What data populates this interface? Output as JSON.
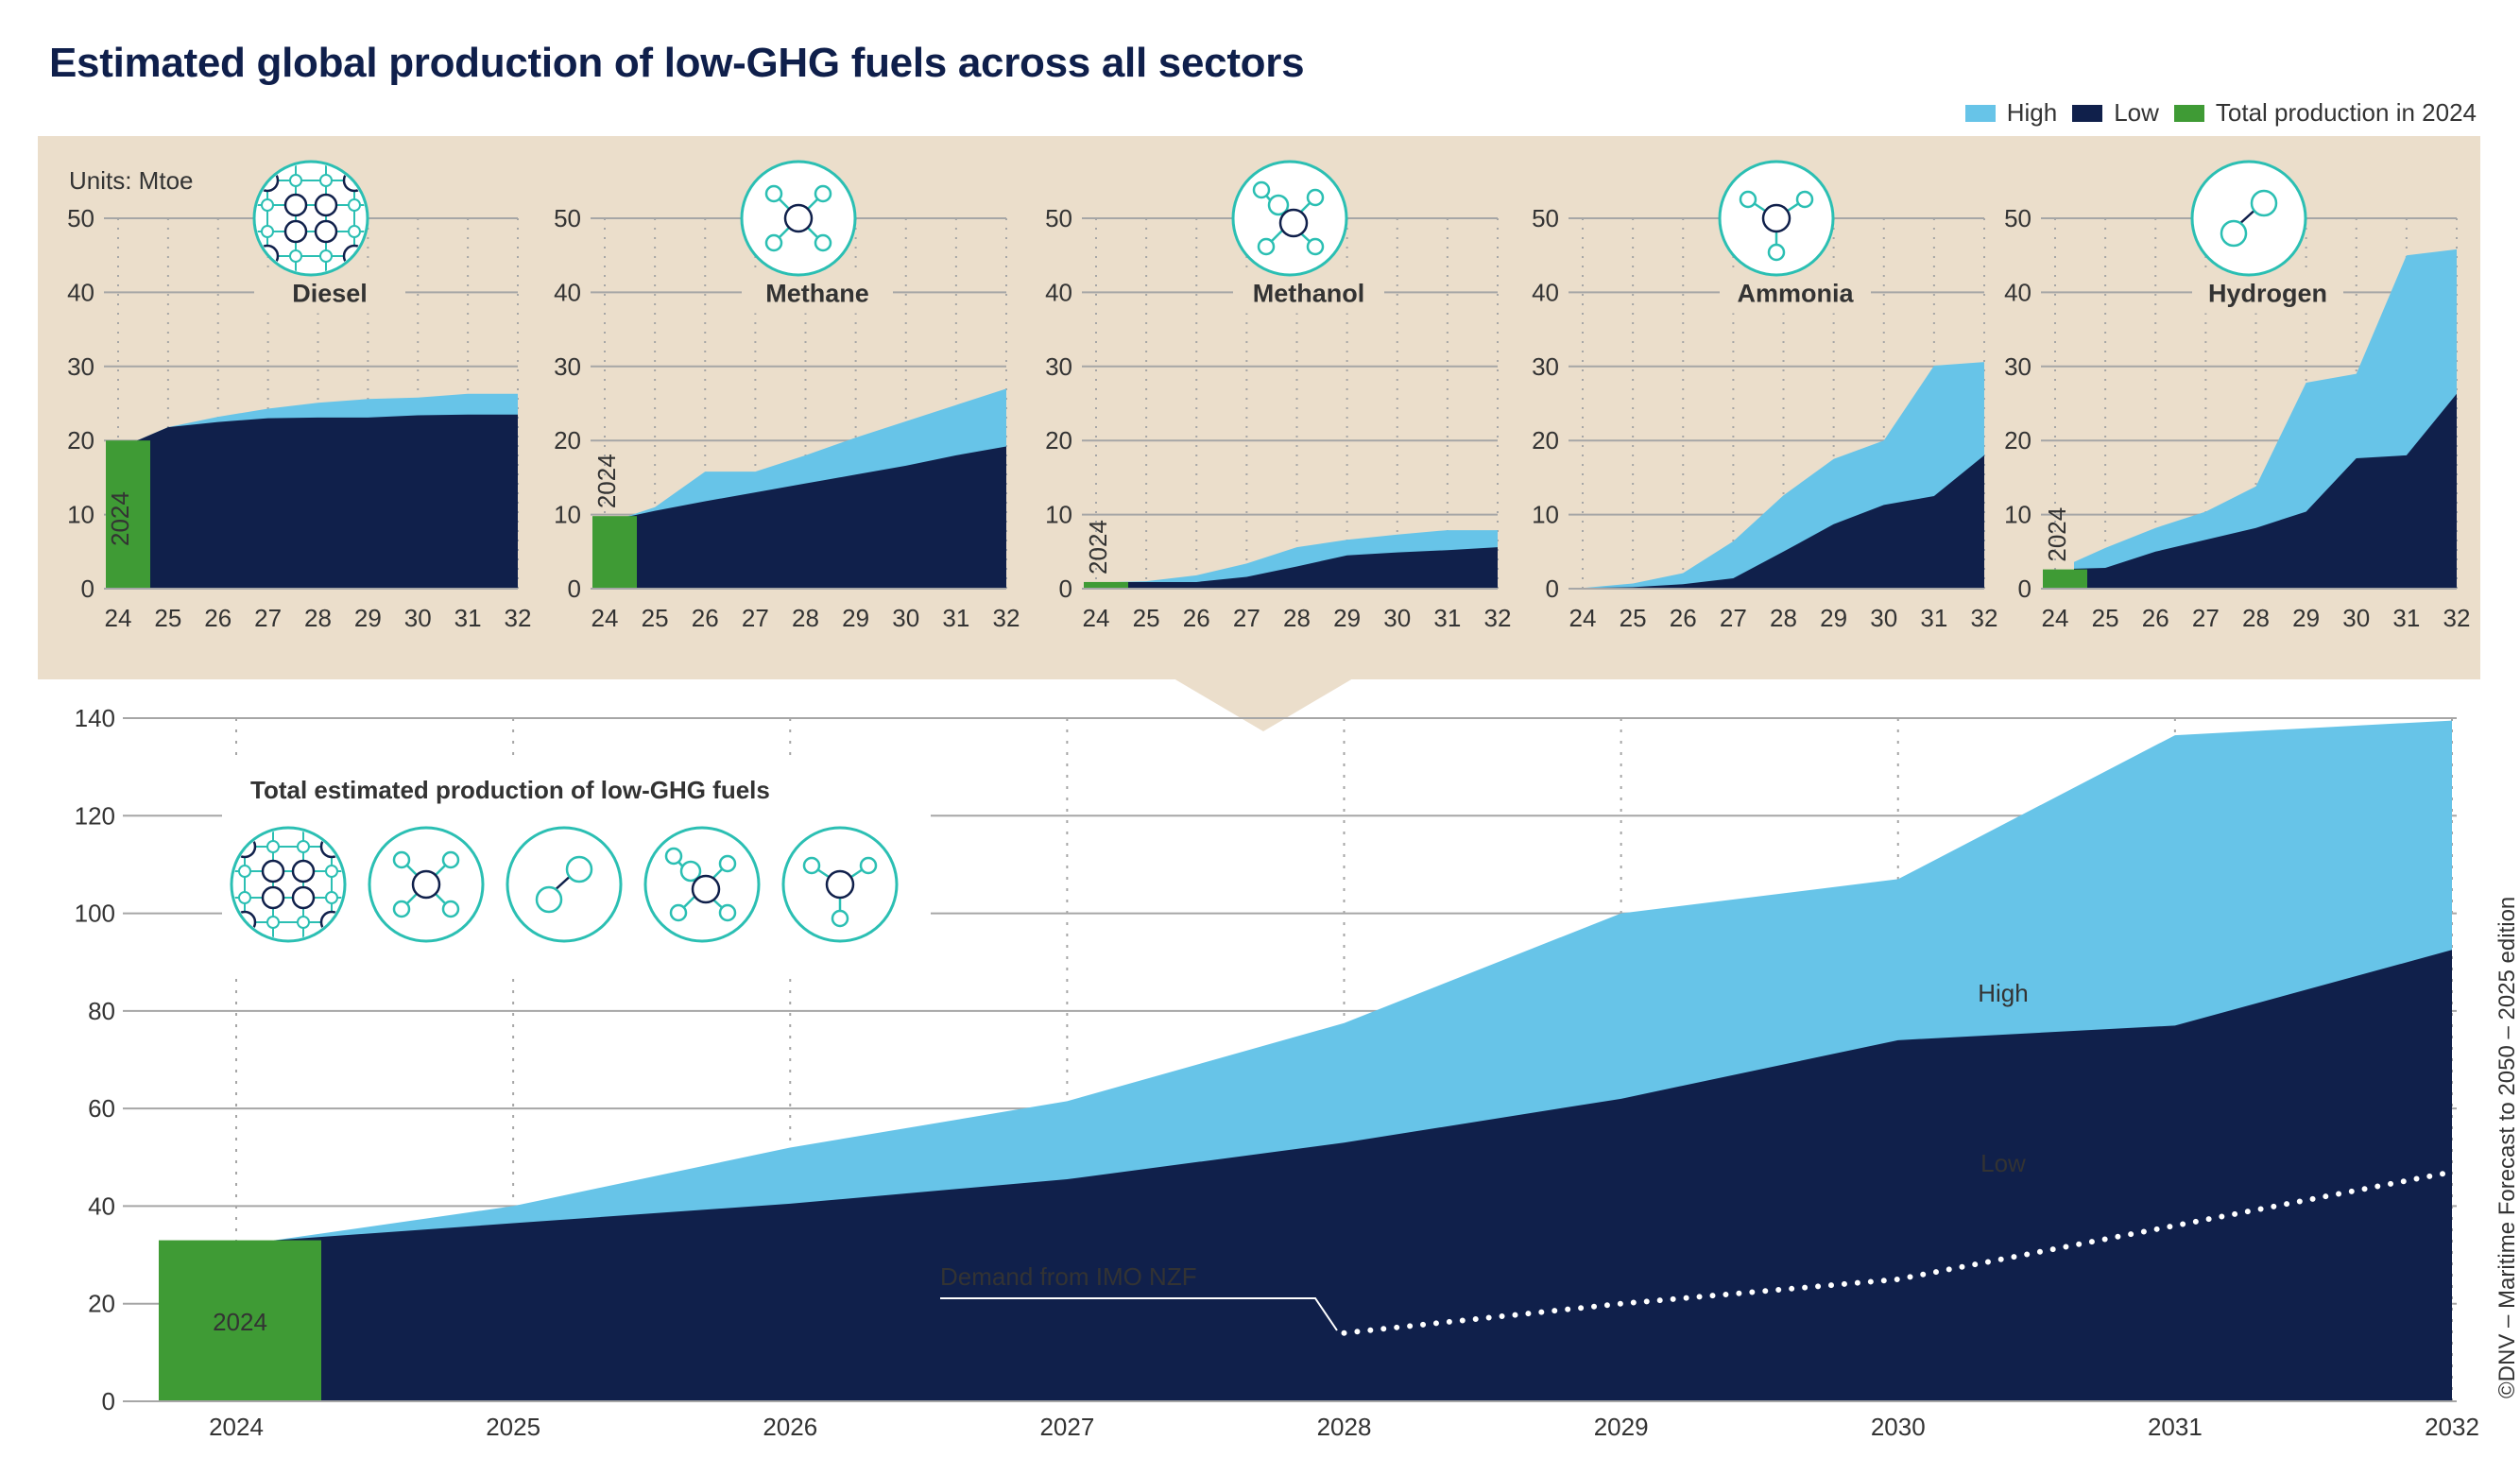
{
  "title": "Estimated global production of low-GHG fuels across all sectors",
  "legend": [
    {
      "label": "High",
      "color": "#67c4e8"
    },
    {
      "label": "Low",
      "color": "#10204b"
    },
    {
      "label": "Total production in 2024",
      "color": "#3f9b35"
    }
  ],
  "colors": {
    "high": "#67c4e8",
    "low": "#10204b",
    "base2024": "#3f9b35",
    "panel": "#ebdecb",
    "icon_teal": "#2bbfb3",
    "icon_navy": "#10204b",
    "grid": "#a6a6a6"
  },
  "units_label": "Units: Mtoe",
  "copyright": "©DNV – Maritime Forecast to 2050 – 2025 edition",
  "chart_data": [
    {
      "type": "area",
      "name": "Diesel",
      "title": "Diesel",
      "icon": "diesel-molecule-icon",
      "x": [
        "24",
        "25",
        "26",
        "27",
        "28",
        "29",
        "30",
        "31",
        "32"
      ],
      "ylim": [
        0,
        50
      ],
      "yticks": [
        0,
        10,
        20,
        30,
        40,
        50
      ],
      "base2024": 20,
      "base_label": "2024",
      "series": [
        {
          "name": "Low",
          "values": [
            20,
            21.8,
            22.5,
            23,
            23.1,
            23.1,
            23.4,
            23.5,
            23.5
          ]
        },
        {
          "name": "High",
          "values": [
            20,
            21.8,
            23.2,
            24.3,
            25.1,
            25.6,
            25.8,
            26.3,
            26.3
          ]
        }
      ]
    },
    {
      "type": "area",
      "name": "Methane",
      "title": "Methane",
      "icon": "methane-molecule-icon",
      "x": [
        "24",
        "25",
        "26",
        "27",
        "28",
        "29",
        "30",
        "31",
        "32"
      ],
      "ylim": [
        0,
        50
      ],
      "yticks": [
        0,
        10,
        20,
        30,
        40,
        50
      ],
      "base2024": 9.8,
      "base_label": "2024",
      "series": [
        {
          "name": "Low",
          "values": [
            9.6,
            10.5,
            11.8,
            13,
            14.2,
            15.4,
            16.6,
            18,
            19.2
          ]
        },
        {
          "name": "High",
          "values": [
            9.6,
            11,
            15.8,
            15.8,
            18,
            20.4,
            22.6,
            24.8,
            27
          ]
        }
      ]
    },
    {
      "type": "area",
      "name": "Methanol",
      "title": "Methanol",
      "icon": "methanol-molecule-icon",
      "x": [
        "24",
        "25",
        "26",
        "27",
        "28",
        "29",
        "30",
        "31",
        "32"
      ],
      "ylim": [
        0,
        50
      ],
      "yticks": [
        0,
        10,
        20,
        30,
        40,
        50
      ],
      "base2024": 0.9,
      "base_label": "2024",
      "series": [
        {
          "name": "Low",
          "values": [
            0.9,
            0.9,
            0.9,
            1.6,
            3,
            4.5,
            4.9,
            5.2,
            5.6
          ]
        },
        {
          "name": "High",
          "values": [
            0.9,
            1,
            1.8,
            3.4,
            5.6,
            6.6,
            7.3,
            7.9,
            7.9
          ]
        }
      ]
    },
    {
      "type": "area",
      "name": "Ammonia",
      "title": "Ammonia",
      "icon": "ammonia-molecule-icon",
      "x": [
        "24",
        "25",
        "26",
        "27",
        "28",
        "29",
        "30",
        "31",
        "32"
      ],
      "ylim": [
        0,
        50
      ],
      "yticks": [
        0,
        10,
        20,
        30,
        40,
        50
      ],
      "base2024": 0,
      "base_label": "",
      "series": [
        {
          "name": "Low",
          "values": [
            0.1,
            0.2,
            0.6,
            1.4,
            5,
            8.7,
            11.3,
            12.5,
            18
          ]
        },
        {
          "name": "High",
          "values": [
            0.1,
            0.7,
            2.1,
            6.4,
            12.6,
            17.5,
            20,
            30.1,
            30.6
          ]
        }
      ]
    },
    {
      "type": "area",
      "name": "Hydrogen",
      "title": "Hydrogen",
      "icon": "hydrogen-molecule-icon",
      "x": [
        "24",
        "25",
        "26",
        "27",
        "28",
        "29",
        "30",
        "31",
        "32"
      ],
      "ylim": [
        0,
        50
      ],
      "yticks": [
        0,
        10,
        20,
        30,
        40,
        50
      ],
      "base2024": 2.6,
      "base_label": "2024",
      "series": [
        {
          "name": "Low",
          "values": [
            2.7,
            2.8,
            5,
            6.6,
            8.2,
            10.4,
            17.6,
            18,
            26.3
          ]
        },
        {
          "name": "High",
          "values": [
            3.6,
            5.5,
            8.2,
            10.4,
            13.8,
            27.8,
            29,
            45,
            45.8
          ]
        }
      ]
    },
    {
      "type": "area",
      "name": "Total",
      "title": "Total estimated production of low-GHG fuels",
      "x": [
        "2024",
        "2025",
        "2026",
        "2027",
        "2028",
        "2029",
        "2030",
        "2031",
        "2032"
      ],
      "ylim": [
        0,
        140
      ],
      "yticks": [
        0,
        20,
        40,
        60,
        80,
        100,
        120,
        140
      ],
      "base2024": 33,
      "base_label": "2024",
      "series": [
        {
          "name": "Low",
          "label": "Low",
          "values": [
            33,
            36.5,
            40.5,
            45.5,
            53,
            62,
            74,
            77,
            92.5
          ]
        },
        {
          "name": "High",
          "label": "High",
          "values": [
            33,
            40,
            52,
            61.5,
            77.5,
            100,
            107,
            136.5,
            139.5
          ]
        },
        {
          "name": "Demand from IMO NZF",
          "label": "Demand from IMO NZF",
          "style": "dotted",
          "x": [
            "2028",
            "2029",
            "2030",
            "2031",
            "2032"
          ],
          "values": [
            14,
            20,
            25,
            36,
            47
          ]
        }
      ]
    }
  ]
}
